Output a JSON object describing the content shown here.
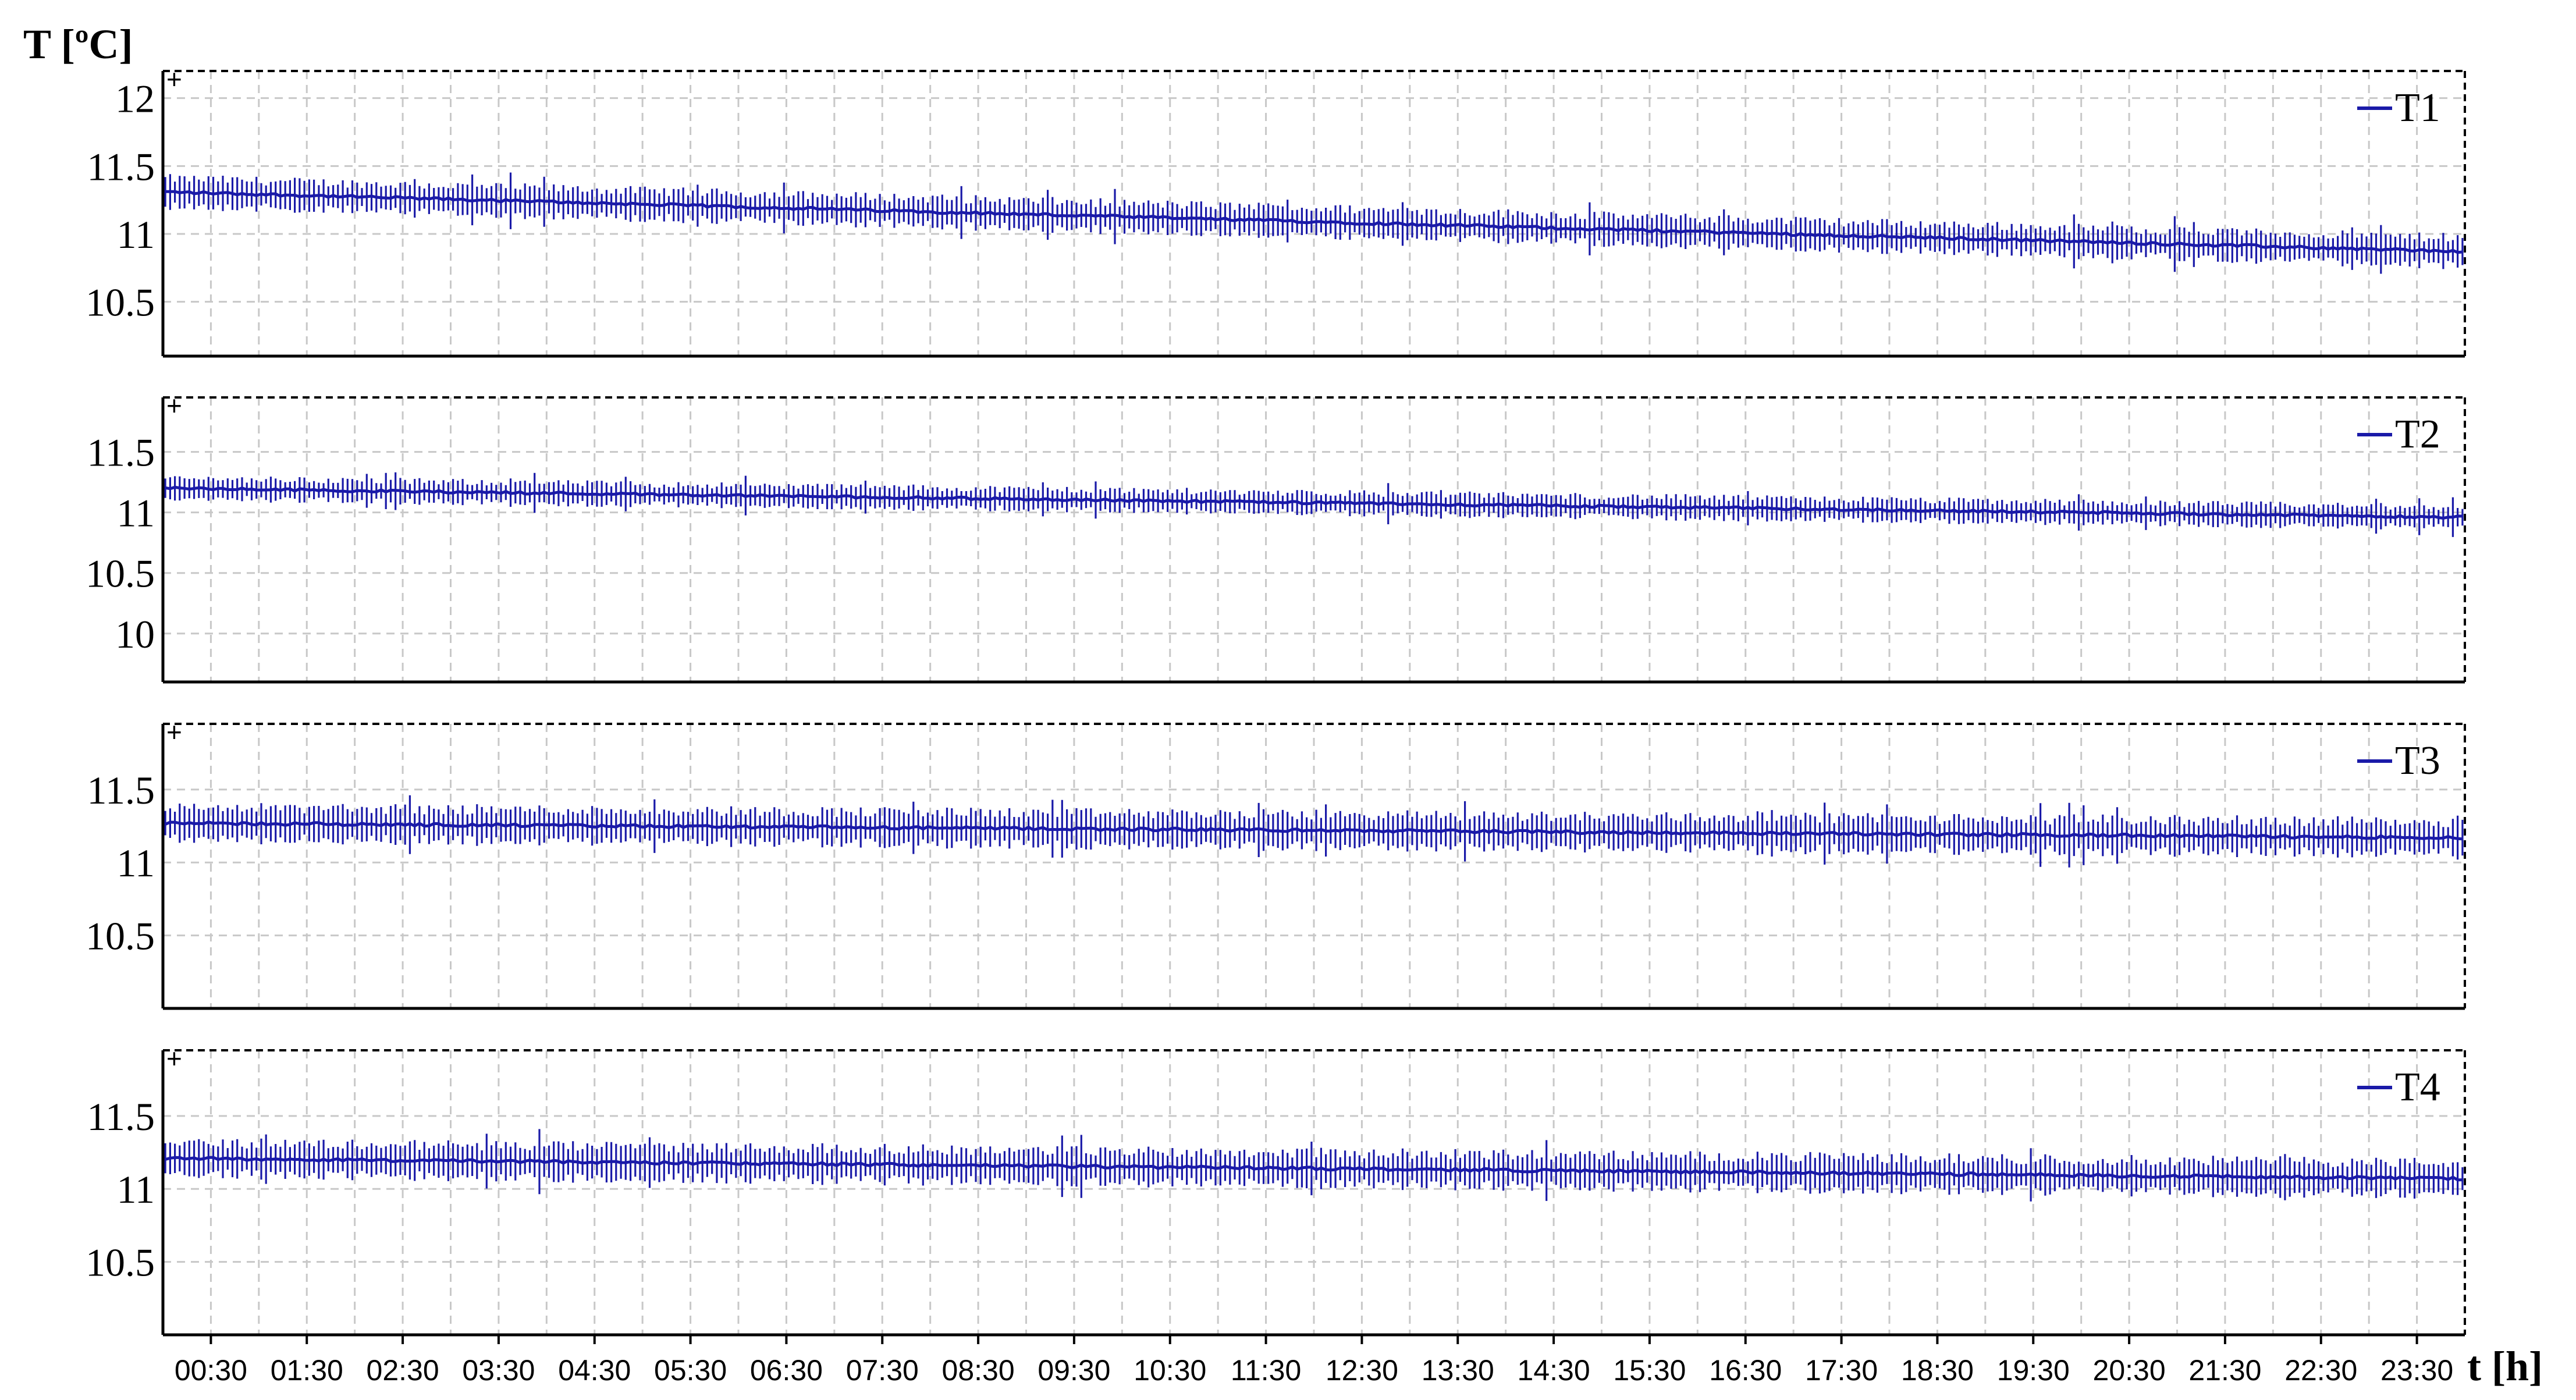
{
  "figure": {
    "y_axis_label": "T [ºC]",
    "x_axis_label": "t [h]"
  },
  "colors": {
    "series": "#1a1aa8",
    "frame": "#000000",
    "grid": "#c8c8c8"
  },
  "chart_data": [
    {
      "type": "line",
      "legend": "T1",
      "yticks": [
        "12",
        "11.5",
        "11",
        "10.5"
      ],
      "ylim": [
        10.1,
        12.2
      ],
      "xlim": [
        0,
        24
      ],
      "grid": true,
      "legend_position": "top-right",
      "series": [
        {
          "name": "T1",
          "start": 11.31,
          "end": 10.87,
          "amplitude": 0.12
        }
      ]
    },
    {
      "type": "line",
      "legend": "T2",
      "yticks": [
        "11.5",
        "11",
        "10.5",
        "10"
      ],
      "ylim": [
        9.6,
        11.95
      ],
      "xlim": [
        0,
        24
      ],
      "grid": true,
      "legend_position": "top-right",
      "series": [
        {
          "name": "T2",
          "start": 11.2,
          "end": 10.96,
          "amplitude": 0.1
        }
      ]
    },
    {
      "type": "line",
      "legend": "T3",
      "yticks": [
        "11.5",
        "11",
        "10.5"
      ],
      "ylim": [
        10.0,
        11.95
      ],
      "xlim": [
        0,
        24
      ],
      "grid": true,
      "legend_position": "top-right",
      "series": [
        {
          "name": "T3",
          "start": 11.27,
          "end": 11.17,
          "amplitude": 0.13
        }
      ]
    },
    {
      "type": "line",
      "legend": "T4",
      "yticks": [
        "11.5",
        "11",
        "10.5"
      ],
      "ylim": [
        10.0,
        11.95
      ],
      "xlim": [
        0,
        24
      ],
      "grid": true,
      "legend_position": "top-right",
      "series": [
        {
          "name": "T4",
          "start": 11.21,
          "end": 11.07,
          "amplitude": 0.13
        }
      ]
    }
  ],
  "x_ticks": [
    "00:30",
    "01:30",
    "02:30",
    "03:30",
    "04:30",
    "05:30",
    "06:30",
    "07:30",
    "08:30",
    "09:30",
    "10:30",
    "11:30",
    "12:30",
    "13:30",
    "14:30",
    "15:30",
    "16:30",
    "17:30",
    "18:30",
    "19:30",
    "20:30",
    "21:30",
    "22:30",
    "23:30"
  ]
}
